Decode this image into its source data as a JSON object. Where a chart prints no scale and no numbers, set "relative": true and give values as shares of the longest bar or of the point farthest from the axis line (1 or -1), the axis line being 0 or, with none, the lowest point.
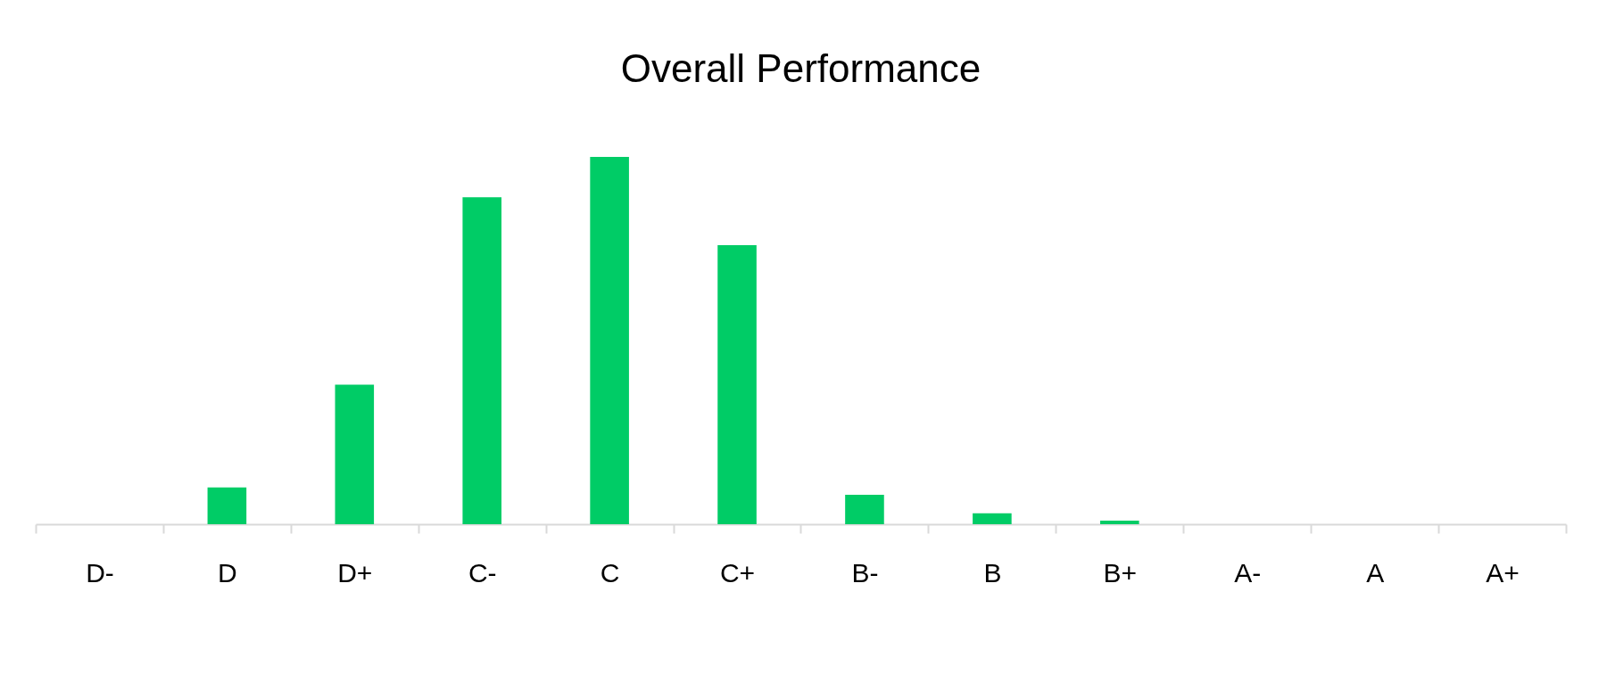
{
  "chart_data": {
    "type": "bar",
    "title": "Overall Performance",
    "categories": [
      "D-",
      "D",
      "D+",
      "C-",
      "C",
      "C+",
      "B-",
      "B",
      "B+",
      "A-",
      "A",
      "A+"
    ],
    "values": [
      0,
      0.1,
      0.38,
      0.89,
      1,
      0.76,
      0.08,
      0.03,
      0.01,
      0,
      0,
      0
    ],
    "color": "#00cc66",
    "relative": true
  }
}
